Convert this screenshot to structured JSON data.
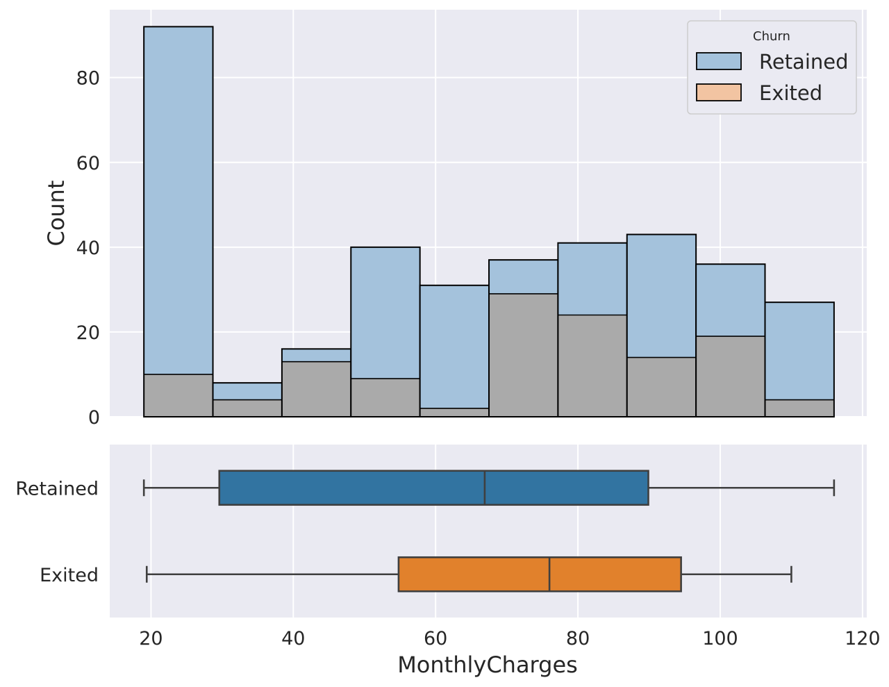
{
  "chart_data": [
    {
      "type": "histogram",
      "ylabel": "Count",
      "ylim": [
        0,
        96
      ],
      "yticks": [
        0,
        20,
        40,
        60,
        80
      ],
      "grid": true,
      "legend": {
        "title": "Churn",
        "position": "top-right"
      },
      "bin_edges": [
        19.0,
        28.7,
        38.4,
        48.1,
        57.8,
        67.5,
        77.2,
        86.9,
        96.6,
        106.3,
        116.0
      ],
      "series": [
        {
          "name": "Retained",
          "color": "#a4c2dc",
          "values": [
            92,
            8,
            16,
            40,
            31,
            37,
            41,
            43,
            36,
            27
          ]
        },
        {
          "name": "Exited",
          "color": "#f2c4a2",
          "values": [
            10,
            4,
            13,
            9,
            2,
            29,
            24,
            14,
            19,
            4
          ]
        }
      ],
      "overlap_color": "#aaaaaa"
    },
    {
      "type": "box",
      "xlabel": "MonthlyCharges",
      "xticks": [
        20,
        40,
        60,
        80,
        100,
        120
      ],
      "xlim": [
        14.2,
        120.6
      ],
      "categories": [
        "Retained",
        "Exited"
      ],
      "boxes": [
        {
          "name": "Retained",
          "color": "#3274a1",
          "whisker_low": 19.0,
          "q1": 29.6,
          "median": 66.9,
          "q3": 89.9,
          "whisker_high": 116.0
        },
        {
          "name": "Exited",
          "color": "#e1812c",
          "whisker_low": 19.4,
          "q1": 54.8,
          "median": 76.0,
          "q3": 94.5,
          "whisker_high": 110.0
        }
      ]
    }
  ]
}
